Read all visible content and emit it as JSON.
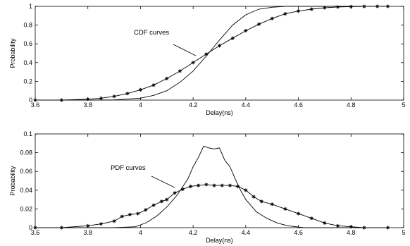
{
  "chart_data": [
    {
      "type": "line",
      "xlabel": "Delay(ns)",
      "ylabel": "Probability",
      "xlim": [
        3.6,
        5.0
      ],
      "ylim": [
        0,
        1
      ],
      "xticks": [
        "3.6",
        "3.8",
        "4",
        "4.2",
        "4.4",
        "4.6",
        "4.8",
        "5"
      ],
      "yticks": [
        "0",
        "0.2",
        "0.4",
        "0.6",
        "0.8",
        "1"
      ],
      "annotation": "CDF curves",
      "grid": false,
      "series": [
        {
          "marker": "none",
          "x": [
            3.6,
            3.8,
            3.9,
            4.0,
            4.05,
            4.1,
            4.15,
            4.2,
            4.25,
            4.3,
            4.35,
            4.4,
            4.45,
            4.5,
            4.55,
            4.6,
            4.7,
            4.94
          ],
          "y": [
            0,
            0,
            0.002,
            0.02,
            0.05,
            0.1,
            0.19,
            0.31,
            0.47,
            0.64,
            0.8,
            0.91,
            0.97,
            0.99,
            1.0,
            1.0,
            1.0,
            1.0
          ]
        },
        {
          "marker": "star",
          "x": [
            3.6,
            3.7,
            3.8,
            3.85,
            3.9,
            3.95,
            4.0,
            4.05,
            4.1,
            4.15,
            4.2,
            4.25,
            4.3,
            4.35,
            4.4,
            4.45,
            4.5,
            4.55,
            4.6,
            4.65,
            4.7,
            4.75,
            4.8,
            4.85,
            4.9,
            4.94
          ],
          "y": [
            0,
            0,
            0.01,
            0.02,
            0.04,
            0.07,
            0.11,
            0.16,
            0.23,
            0.31,
            0.4,
            0.49,
            0.58,
            0.66,
            0.74,
            0.81,
            0.87,
            0.92,
            0.95,
            0.97,
            0.985,
            0.993,
            0.997,
            0.999,
            1.0,
            1.0
          ]
        }
      ]
    },
    {
      "type": "line",
      "xlabel": "Delay(ns)",
      "ylabel": "Probability",
      "xlim": [
        3.6,
        5.0
      ],
      "ylim": [
        0,
        0.1
      ],
      "xticks": [
        "3.6",
        "3.8",
        "4",
        "4.2",
        "4.4",
        "4.6",
        "4.8",
        "5"
      ],
      "yticks": [
        "0",
        "0.02",
        "0.04",
        "0.06",
        "0.08",
        "0.1"
      ],
      "annotation": "PDF curves",
      "grid": false,
      "series": [
        {
          "marker": "none",
          "x": [
            3.6,
            3.9,
            3.98,
            4.02,
            4.06,
            4.1,
            4.14,
            4.18,
            4.2,
            4.22,
            4.24,
            4.26,
            4.28,
            4.3,
            4.32,
            4.34,
            4.36,
            4.38,
            4.4,
            4.44,
            4.48,
            4.52,
            4.56,
            4.62,
            4.94
          ],
          "y": [
            0,
            0,
            0.001,
            0.005,
            0.012,
            0.022,
            0.035,
            0.052,
            0.065,
            0.075,
            0.087,
            0.085,
            0.084,
            0.085,
            0.072,
            0.065,
            0.052,
            0.04,
            0.03,
            0.017,
            0.01,
            0.005,
            0.002,
            0,
            0
          ]
        },
        {
          "marker": "star",
          "x": [
            3.6,
            3.7,
            3.8,
            3.85,
            3.9,
            3.93,
            3.96,
            3.99,
            4.02,
            4.05,
            4.08,
            4.1,
            4.13,
            4.16,
            4.19,
            4.22,
            4.25,
            4.28,
            4.31,
            4.34,
            4.37,
            4.4,
            4.43,
            4.46,
            4.5,
            4.55,
            4.6,
            4.65,
            4.7,
            4.75,
            4.8,
            4.85,
            4.94
          ],
          "y": [
            0,
            0,
            0.002,
            0.004,
            0.007,
            0.012,
            0.014,
            0.015,
            0.019,
            0.024,
            0.028,
            0.03,
            0.037,
            0.041,
            0.044,
            0.045,
            0.046,
            0.045,
            0.045,
            0.045,
            0.044,
            0.04,
            0.033,
            0.028,
            0.025,
            0.02,
            0.015,
            0.01,
            0.005,
            0.002,
            0.001,
            0,
            0
          ]
        }
      ]
    }
  ]
}
